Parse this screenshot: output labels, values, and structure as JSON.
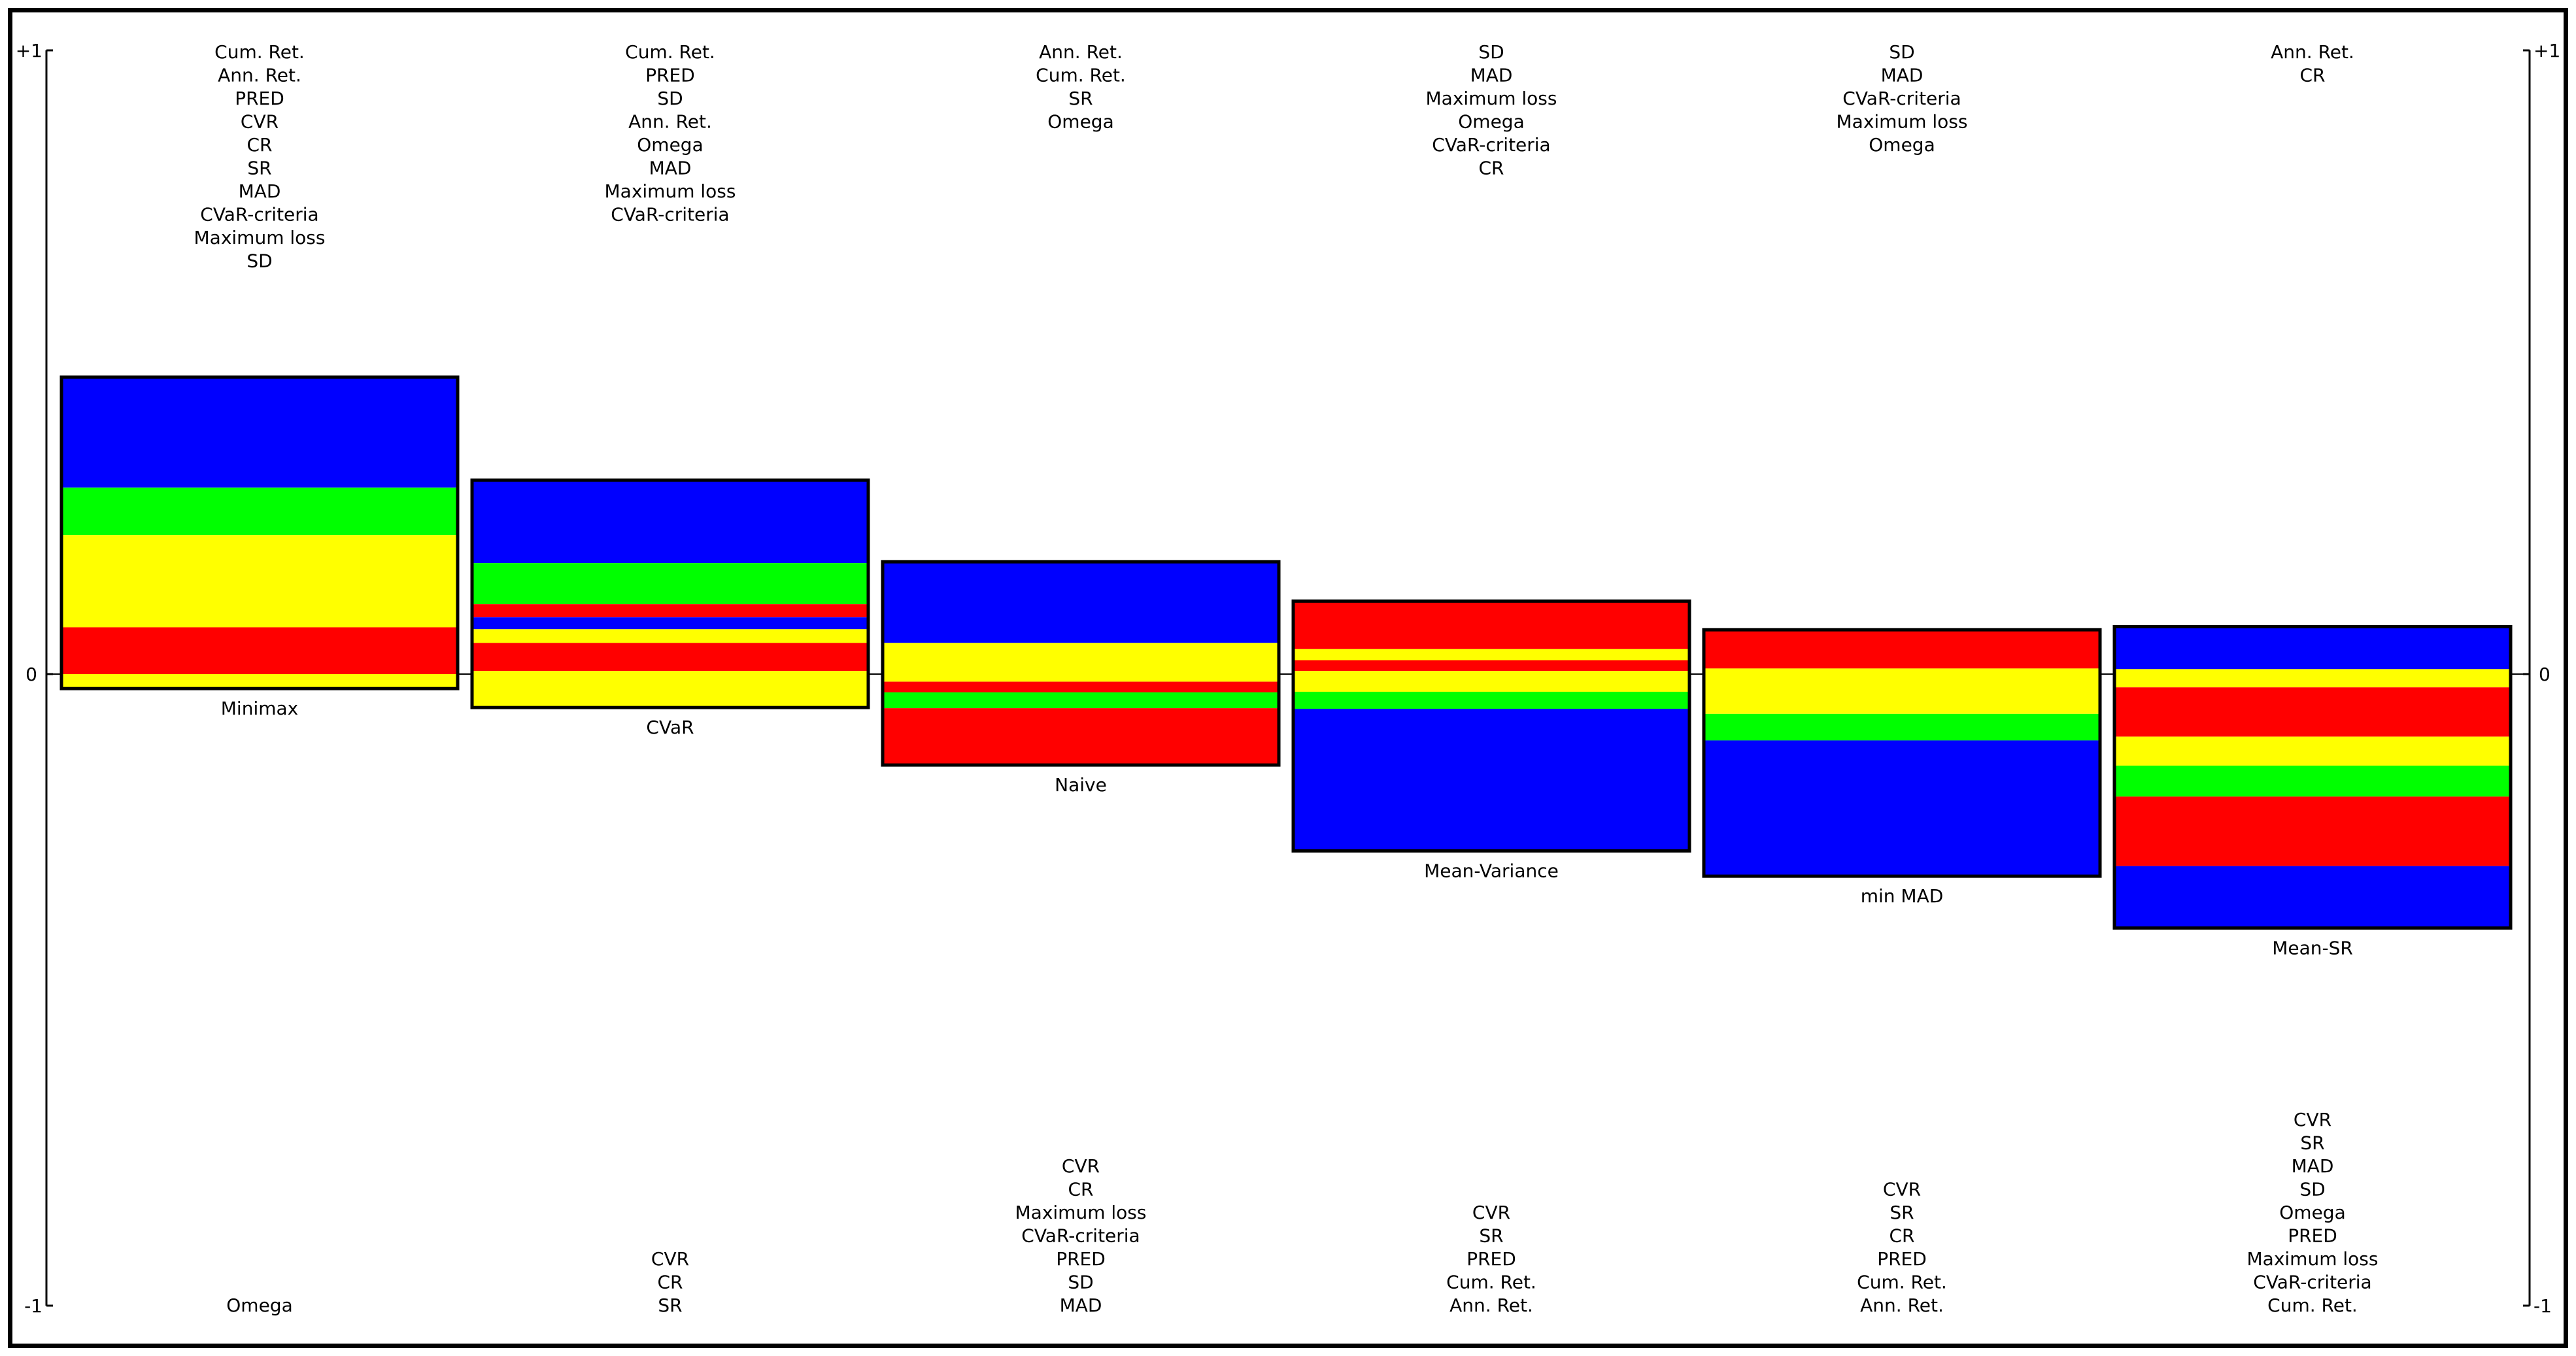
{
  "chart_data": {
    "type": "stacked-bar",
    "title": "",
    "axis": {
      "top_label": "+1",
      "zero_label": "0",
      "bottom_label": "-1",
      "ylim": [
        -1,
        1
      ]
    },
    "colors": {
      "blue": "#0000ff",
      "green": "#00ff00",
      "yellow": "#ffff00",
      "red": "#ff0000",
      "outline": "#000000"
    },
    "actions": [
      {
        "name": "Minimax",
        "top": 0.476,
        "bottom": -0.023,
        "segments": [
          {
            "from": 0.476,
            "to": 0.299,
            "color": "blue"
          },
          {
            "from": 0.299,
            "to": 0.223,
            "color": "green"
          },
          {
            "from": 0.223,
            "to": 0.075,
            "color": "yellow"
          },
          {
            "from": 0.075,
            "to": 0.0,
            "color": "red"
          },
          {
            "from": 0.0,
            "to": -0.023,
            "color": "yellow"
          }
        ],
        "above_labels": [
          "Cum. Ret.",
          "Ann. Ret.",
          "PRED",
          "CVR",
          "CR",
          "SR",
          "MAD",
          "CVaR-criteria",
          "Maximum loss",
          "SD"
        ],
        "below_labels": [
          "Omega"
        ]
      },
      {
        "name": "CVaR",
        "top": 0.311,
        "bottom": -0.053,
        "segments": [
          {
            "from": 0.311,
            "to": 0.178,
            "color": "blue"
          },
          {
            "from": 0.178,
            "to": 0.112,
            "color": "green"
          },
          {
            "from": 0.112,
            "to": 0.091,
            "color": "red"
          },
          {
            "from": 0.091,
            "to": 0.072,
            "color": "blue"
          },
          {
            "from": 0.072,
            "to": 0.05,
            "color": "yellow"
          },
          {
            "from": 0.05,
            "to": 0.005,
            "color": "red"
          },
          {
            "from": 0.005,
            "to": -0.053,
            "color": "yellow"
          }
        ],
        "above_labels": [
          "Cum. Ret.",
          "PRED",
          "SD",
          "Ann. Ret.",
          "Omega",
          "MAD",
          "Maximum loss",
          "CVaR-criteria"
        ],
        "below_labels": [
          "CVR",
          "CR",
          "SR"
        ]
      },
      {
        "name": "Naive",
        "top": 0.18,
        "bottom": -0.144,
        "segments": [
          {
            "from": 0.18,
            "to": 0.05,
            "color": "blue"
          },
          {
            "from": 0.05,
            "to": -0.012,
            "color": "yellow"
          },
          {
            "from": -0.012,
            "to": -0.029,
            "color": "red"
          },
          {
            "from": -0.029,
            "to": -0.054,
            "color": "green"
          },
          {
            "from": -0.054,
            "to": -0.144,
            "color": "red"
          }
        ],
        "above_labels": [
          "Ann. Ret.",
          "Cum. Ret.",
          "SR",
          "Omega"
        ],
        "below_labels": [
          "CVR",
          "CR",
          "Maximum loss",
          "CVaR-criteria",
          "PRED",
          "SD",
          "MAD"
        ]
      },
      {
        "name": "Mean-Variance",
        "top": 0.117,
        "bottom": -0.28,
        "segments": [
          {
            "from": 0.117,
            "to": 0.04,
            "color": "red"
          },
          {
            "from": 0.04,
            "to": 0.022,
            "color": "yellow"
          },
          {
            "from": 0.022,
            "to": 0.005,
            "color": "red"
          },
          {
            "from": 0.005,
            "to": -0.028,
            "color": "yellow"
          },
          {
            "from": -0.028,
            "to": -0.055,
            "color": "green"
          },
          {
            "from": -0.055,
            "to": -0.28,
            "color": "blue"
          }
        ],
        "above_labels": [
          "SD",
          "MAD",
          "Maximum loss",
          "Omega",
          "CVaR-criteria",
          "CR"
        ],
        "below_labels": [
          "CVR",
          "SR",
          "PRED",
          "Cum. Ret.",
          "Ann. Ret."
        ]
      },
      {
        "name": "min MAD",
        "top": 0.071,
        "bottom": -0.32,
        "segments": [
          {
            "from": 0.071,
            "to": 0.009,
            "color": "red"
          },
          {
            "from": 0.009,
            "to": -0.063,
            "color": "yellow"
          },
          {
            "from": -0.063,
            "to": -0.105,
            "color": "green"
          },
          {
            "from": -0.105,
            "to": -0.32,
            "color": "blue"
          }
        ],
        "above_labels": [
          "SD",
          "MAD",
          "CVaR-criteria",
          "Maximum loss",
          "Omega"
        ],
        "below_labels": [
          "CVR",
          "SR",
          "CR",
          "PRED",
          "Cum. Ret.",
          "Ann. Ret."
        ]
      },
      {
        "name": "Mean-SR",
        "top": 0.076,
        "bottom": -0.402,
        "segments": [
          {
            "from": 0.076,
            "to": 0.008,
            "color": "blue"
          },
          {
            "from": 0.008,
            "to": -0.021,
            "color": "yellow"
          },
          {
            "from": -0.021,
            "to": -0.099,
            "color": "red"
          },
          {
            "from": -0.099,
            "to": -0.145,
            "color": "yellow"
          },
          {
            "from": -0.145,
            "to": -0.194,
            "color": "green"
          },
          {
            "from": -0.194,
            "to": -0.304,
            "color": "red"
          },
          {
            "from": -0.304,
            "to": -0.402,
            "color": "blue"
          }
        ],
        "above_labels": [
          "Ann. Ret.",
          "CR"
        ],
        "below_labels": [
          "CVR",
          "SR",
          "MAD",
          "SD",
          "Omega",
          "PRED",
          "Maximum loss",
          "CVaR-criteria",
          "Cum. Ret."
        ]
      }
    ]
  }
}
